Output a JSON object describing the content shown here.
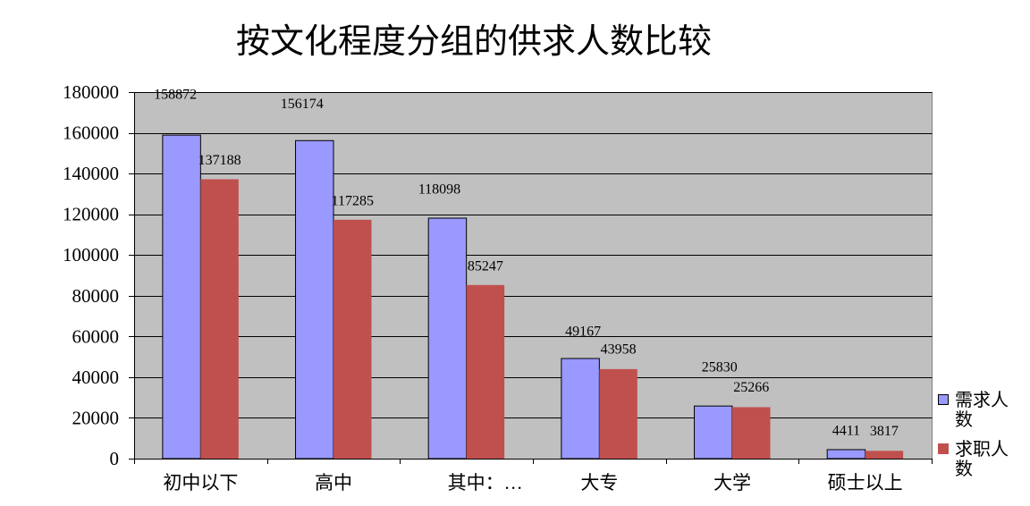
{
  "chart_data": {
    "type": "bar",
    "title": "按文化程度分组的供求人数比较",
    "categories": [
      "初中以下",
      "高中",
      "其中：…",
      "大专",
      "大学",
      "硕士以上"
    ],
    "series": [
      {
        "name": "需求人数",
        "color": "#9999FF",
        "values": [
          158872,
          156174,
          118098,
          49167,
          25830,
          4411
        ]
      },
      {
        "name": "求职人数",
        "color": "#C0504D",
        "values": [
          137188,
          117285,
          85247,
          43958,
          25266,
          3817
        ]
      }
    ],
    "ylim": [
      0,
      180000
    ],
    "yticks": [
      0,
      20000,
      40000,
      60000,
      80000,
      100000,
      120000,
      140000,
      160000,
      180000
    ],
    "grid": true,
    "data_labels": true,
    "legend": "right",
    "plot_background": "#C0C0C0"
  }
}
